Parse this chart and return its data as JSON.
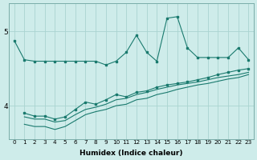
{
  "x": [
    0,
    1,
    2,
    3,
    4,
    5,
    6,
    7,
    8,
    9,
    10,
    11,
    12,
    13,
    14,
    15,
    16,
    17,
    18,
    19,
    20,
    21,
    22,
    23
  ],
  "line1": [
    4.88,
    4.62,
    4.6,
    4.6,
    4.6,
    4.6,
    4.6,
    4.6,
    4.6,
    4.55,
    4.6,
    4.72,
    4.95,
    4.72,
    4.6,
    5.18,
    5.2,
    4.78,
    4.65,
    4.65,
    4.65,
    4.65,
    4.78,
    4.62
  ],
  "line2_x": [
    1,
    2,
    3,
    4,
    5,
    6,
    7,
    8,
    9,
    10,
    11,
    12,
    13,
    14,
    15,
    16,
    17,
    18,
    19,
    20,
    21,
    22,
    23
  ],
  "line2": [
    3.85,
    3.82,
    3.82,
    3.78,
    3.8,
    3.88,
    3.95,
    3.98,
    4.02,
    4.08,
    4.1,
    4.15,
    4.18,
    4.22,
    4.25,
    4.28,
    4.3,
    4.32,
    4.35,
    4.38,
    4.4,
    4.42,
    4.45
  ],
  "line3_x": [
    1,
    2,
    3,
    4,
    5,
    6,
    7,
    8,
    9,
    10,
    11,
    12,
    13,
    14,
    15,
    16,
    17,
    18,
    19,
    20,
    21,
    22,
    23
  ],
  "line3": [
    3.9,
    3.86,
    3.86,
    3.82,
    3.85,
    3.95,
    4.05,
    4.02,
    4.08,
    4.15,
    4.12,
    4.18,
    4.2,
    4.25,
    4.28,
    4.3,
    4.32,
    4.35,
    4.38,
    4.42,
    4.45,
    4.48,
    4.5
  ],
  "line4_x": [
    1,
    2,
    3,
    4,
    5,
    6,
    7,
    8,
    9,
    10,
    11,
    12,
    13,
    14,
    15,
    16,
    17,
    18,
    19,
    20,
    21,
    22,
    23
  ],
  "line4": [
    3.75,
    3.72,
    3.72,
    3.68,
    3.72,
    3.8,
    3.88,
    3.92,
    3.95,
    4.0,
    4.02,
    4.08,
    4.1,
    4.15,
    4.18,
    4.22,
    4.25,
    4.28,
    4.3,
    4.33,
    4.36,
    4.38,
    4.42
  ],
  "color": "#1a7a6e",
  "bg_color": "#ceecea",
  "grid_color": "#aad4d0",
  "xlabel": "Humidex (Indice chaleur)",
  "ylim": [
    3.55,
    5.38
  ],
  "yticks": [
    4,
    5
  ],
  "xticks": [
    0,
    1,
    2,
    3,
    4,
    5,
    6,
    7,
    8,
    9,
    10,
    11,
    12,
    13,
    14,
    15,
    16,
    17,
    18,
    19,
    20,
    21,
    22,
    23
  ]
}
